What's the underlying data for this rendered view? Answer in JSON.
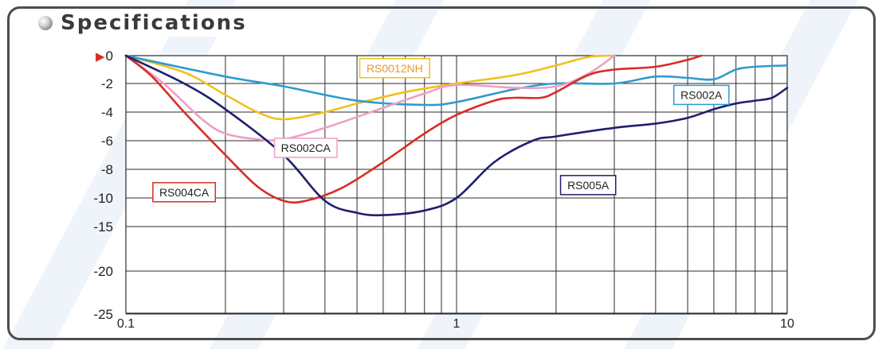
{
  "header": {
    "title": "Specifications"
  },
  "chart_data": {
    "type": "line",
    "title": "",
    "xlabel": "",
    "ylabel": "",
    "xscale": "log",
    "xlim": [
      0.1,
      10
    ],
    "x_ticks": [
      "0.1",
      "1",
      "10"
    ],
    "y_ticks": [
      "0",
      "-2",
      "-4",
      "-6",
      "-8",
      "-10",
      "-15",
      "-20",
      "-25"
    ],
    "y_marker": "▶",
    "grid": true,
    "series": [
      {
        "name": "RS0012NH",
        "color": "#f0c020",
        "x": [
          0.1,
          0.15,
          0.2,
          0.25,
          0.3,
          0.4,
          0.5,
          0.7,
          1.0,
          1.5,
          2.0,
          2.5,
          3.0
        ],
        "y": [
          0,
          -1.2,
          -2.8,
          -4.0,
          -4.5,
          -4.0,
          -3.4,
          -2.6,
          -2.0,
          -1.4,
          -0.7,
          -0.1,
          0
        ]
      },
      {
        "name": "RS002A",
        "color": "#2f9bd0",
        "x": [
          0.1,
          0.2,
          0.3,
          0.5,
          0.8,
          1.0,
          1.5,
          2.0,
          3.0,
          4.0,
          5.0,
          6.0,
          7.0,
          8.0,
          10.0
        ],
        "y": [
          0,
          -1.5,
          -2.2,
          -3.2,
          -3.5,
          -3.3,
          -2.4,
          -2.0,
          -2.0,
          -1.5,
          -1.6,
          -1.7,
          -1.0,
          -0.8,
          -0.7
        ]
      },
      {
        "name": "RS002CA",
        "color": "#ef9fc6",
        "x": [
          0.1,
          0.13,
          0.17,
          0.2,
          0.25,
          0.3,
          0.4,
          0.6,
          0.8,
          1.0,
          1.5,
          2.0,
          2.5,
          3.0
        ],
        "y": [
          0,
          -2.0,
          -4.5,
          -5.5,
          -5.9,
          -5.9,
          -5.1,
          -3.7,
          -2.7,
          -2.1,
          -2.3,
          -2.2,
          -1.3,
          0
        ]
      },
      {
        "name": "RS004CA",
        "color": "#d92d25",
        "x": [
          0.1,
          0.12,
          0.15,
          0.2,
          0.25,
          0.3,
          0.35,
          0.45,
          0.6,
          0.8,
          1.0,
          1.3,
          1.5,
          1.8,
          2.0,
          2.5,
          3.0,
          4.0,
          5.0,
          5.5
        ],
        "y": [
          0,
          -1.5,
          -4.0,
          -7.0,
          -9.2,
          -10.5,
          -10.5,
          -9.3,
          -7.5,
          -5.5,
          -4.2,
          -3.2,
          -3.0,
          -3.0,
          -2.6,
          -1.4,
          -1.0,
          -0.8,
          -0.3,
          0
        ]
      },
      {
        "name": "RS005A",
        "color": "#1f1f6e",
        "x": [
          0.1,
          0.15,
          0.2,
          0.3,
          0.4,
          0.5,
          0.6,
          0.8,
          1.0,
          1.3,
          1.7,
          2.0,
          3.0,
          4.0,
          5.0,
          6.0,
          7.0,
          8.0,
          9.0,
          10.0
        ],
        "y": [
          0,
          -2.0,
          -3.8,
          -7.0,
          -10.5,
          -12.6,
          -13.0,
          -12.2,
          -10.0,
          -7.5,
          -6.0,
          -5.7,
          -5.1,
          -4.8,
          -4.4,
          -3.8,
          -3.4,
          -3.2,
          -3.0,
          -2.3
        ]
      }
    ],
    "labels": [
      {
        "series": "RS0012NH",
        "text": "RS0012NH",
        "x": 0.65,
        "y": -0.9
      },
      {
        "series": "RS002A",
        "text": "RS002A",
        "x": 5.5,
        "y": -2.8
      },
      {
        "series": "RS002CA",
        "text": "RS002CA",
        "x": 0.35,
        "y": -6.5
      },
      {
        "series": "RS004CA",
        "text": "RS004CA",
        "x": 0.15,
        "y": -9.6
      },
      {
        "series": "RS005A",
        "text": "RS005A",
        "x": 2.5,
        "y": -9.1
      }
    ]
  }
}
